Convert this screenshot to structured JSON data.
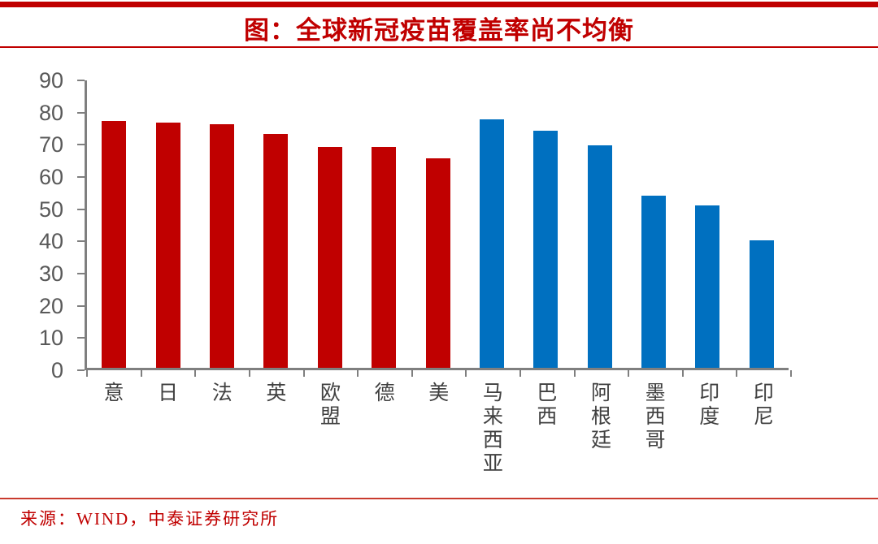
{
  "page": {
    "title": "图：全球新冠疫苗覆盖率尚不均衡",
    "source": "来源：WIND，中泰证券研究所"
  },
  "colors": {
    "accent_red": "#C00000",
    "bar_red": "#C00000",
    "bar_blue": "#0070C0",
    "axis_gray": "#7F7F7F",
    "y_label_gray": "#595959",
    "x_label_gray": "#404040"
  },
  "chart_data": {
    "type": "bar",
    "title": "图：全球新冠疫苗覆盖率尚不均衡",
    "categories": [
      "意",
      "日",
      "法",
      "英",
      "欧盟",
      "德",
      "美",
      "马来西亚",
      "巴西",
      "阿根廷",
      "墨西哥",
      "印度",
      "印尼"
    ],
    "values": [
      76.7,
      76.2,
      75.6,
      72.7,
      68.5,
      68.5,
      65.0,
      77.2,
      73.5,
      69.2,
      53.5,
      50.4,
      39.5
    ],
    "bar_colors": [
      "#C00000",
      "#C00000",
      "#C00000",
      "#C00000",
      "#C00000",
      "#C00000",
      "#C00000",
      "#0070C0",
      "#0070C0",
      "#0070C0",
      "#0070C0",
      "#0070C0",
      "#0070C0"
    ],
    "group_colors": {
      "developed": "#C00000",
      "developing": "#0070C0"
    },
    "xlabel": "",
    "ylabel": "",
    "ylim": [
      0,
      90
    ],
    "y_ticks": [
      0,
      10,
      20,
      30,
      40,
      50,
      60,
      70,
      80,
      90
    ],
    "grid": false,
    "legend_position": "none",
    "source": "来源：WIND，中泰证券研究所"
  }
}
